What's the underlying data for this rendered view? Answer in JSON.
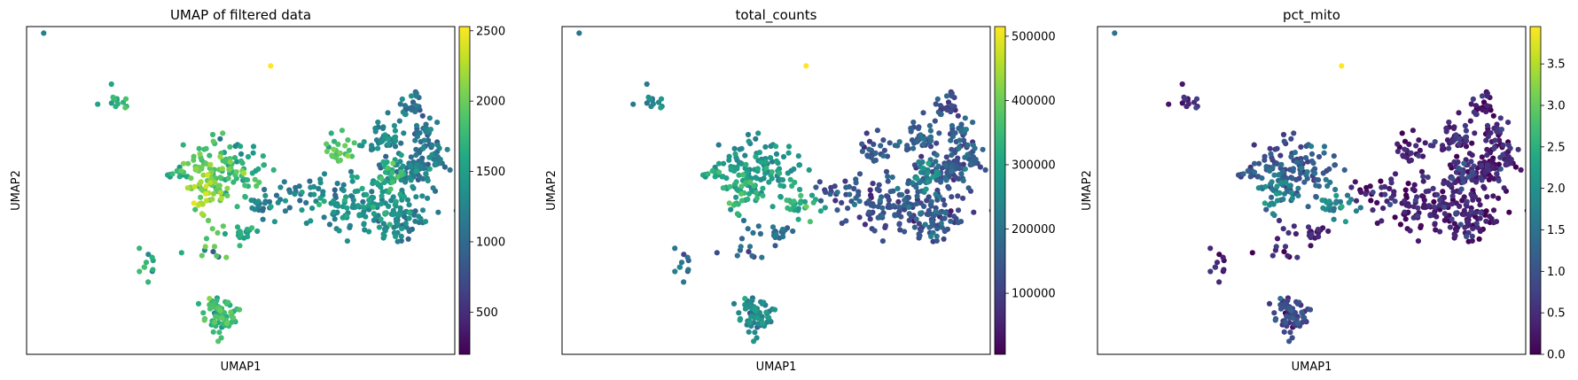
{
  "figure": {
    "panels": [
      {
        "title": "UMAP of filtered data",
        "xlabel": "UMAP1",
        "ylabel": "UMAP2",
        "colorbar": {
          "min": 200,
          "max": 2530,
          "ticks": [
            "500",
            "1000",
            "1500",
            "2000",
            "2500"
          ],
          "tick_values": [
            500,
            1000,
            1500,
            2000,
            2500
          ]
        }
      },
      {
        "title": "total_counts",
        "xlabel": "UMAP1",
        "ylabel": "UMAP2",
        "colorbar": {
          "min": 5000,
          "max": 515000,
          "ticks": [
            "100000",
            "200000",
            "300000",
            "400000",
            "500000"
          ],
          "tick_values": [
            100000,
            200000,
            300000,
            400000,
            500000
          ]
        }
      },
      {
        "title": "pct_mito",
        "xlabel": "UMAP1",
        "ylabel": "UMAP2",
        "colorbar": {
          "min": 0.0,
          "max": 3.95,
          "ticks": [
            "0.0",
            "0.5",
            "1.0",
            "1.5",
            "2.0",
            "2.5",
            "3.0",
            "3.5"
          ],
          "tick_values": [
            0,
            0.5,
            1.0,
            1.5,
            2.0,
            2.5,
            3.0,
            3.5
          ]
        }
      }
    ]
  },
  "chart_data": [
    {
      "type": "scatter",
      "title": "UMAP of filtered data",
      "xlabel": "UMAP1",
      "ylabel": "UMAP2",
      "colormap": "viridis",
      "color_range": [
        200,
        2530
      ],
      "grid": false,
      "clusters": [
        {
          "cx": 0.2,
          "cy": 0.22,
          "sx": 0.05,
          "sy": 0.06,
          "n": 14,
          "value": 1600
        },
        {
          "cx": 0.04,
          "cy": 0.02,
          "sx": 0.01,
          "sy": 0.01,
          "n": 1,
          "value": 1200
        },
        {
          "cx": 0.45,
          "cy": 0.64,
          "sx": 0.12,
          "sy": 0.07,
          "n": 14,
          "value": 1950
        },
        {
          "cx": 0.48,
          "cy": 0.37,
          "sx": 0.05,
          "sy": 0.04,
          "n": 8,
          "value": 1300
        },
        {
          "cx": 0.43,
          "cy": 0.42,
          "sx": 0.08,
          "sy": 0.1,
          "n": 55,
          "value": 1900
        },
        {
          "cx": 0.41,
          "cy": 0.51,
          "sx": 0.05,
          "sy": 0.07,
          "n": 40,
          "value": 2100
        },
        {
          "cx": 0.5,
          "cy": 0.45,
          "sx": 0.09,
          "sy": 0.08,
          "n": 45,
          "value": 1700
        },
        {
          "cx": 0.56,
          "cy": 0.54,
          "sx": 0.05,
          "sy": 0.04,
          "n": 25,
          "value": 1200
        },
        {
          "cx": 0.35,
          "cy": 0.45,
          "sx": 0.03,
          "sy": 0.02,
          "n": 12,
          "value": 1600
        },
        {
          "cx": 0.28,
          "cy": 0.72,
          "sx": 0.02,
          "sy": 0.06,
          "n": 10,
          "value": 1700
        },
        {
          "cx": 0.45,
          "cy": 0.88,
          "sx": 0.05,
          "sy": 0.06,
          "n": 70,
          "value": 1750
        },
        {
          "cx": 0.5,
          "cy": 0.63,
          "sx": 0.04,
          "sy": 0.02,
          "n": 15,
          "value": 1500
        },
        {
          "cx": 0.42,
          "cy": 0.7,
          "sx": 0.09,
          "sy": 0.06,
          "n": 4,
          "value": 1100
        },
        {
          "cx": 0.68,
          "cy": 0.5,
          "sx": 0.12,
          "sy": 0.06,
          "n": 30,
          "value": 1150
        },
        {
          "cx": 0.81,
          "cy": 0.55,
          "sx": 0.15,
          "sy": 0.09,
          "n": 160,
          "value": 1350
        },
        {
          "cx": 0.83,
          "cy": 0.35,
          "sx": 0.06,
          "sy": 0.06,
          "n": 45,
          "value": 1250
        },
        {
          "cx": 0.9,
          "cy": 0.44,
          "sx": 0.06,
          "sy": 0.06,
          "n": 60,
          "value": 1150
        },
        {
          "cx": 0.9,
          "cy": 0.24,
          "sx": 0.04,
          "sy": 0.05,
          "n": 25,
          "value": 1050
        },
        {
          "cx": 0.92,
          "cy": 0.33,
          "sx": 0.05,
          "sy": 0.08,
          "n": 30,
          "value": 1100
        },
        {
          "cx": 0.88,
          "cy": 0.6,
          "sx": 0.04,
          "sy": 0.06,
          "n": 25,
          "value": 1100
        },
        {
          "cx": 0.95,
          "cy": 0.4,
          "sx": 0.04,
          "sy": 0.05,
          "n": 25,
          "value": 1050
        },
        {
          "cx": 0.85,
          "cy": 0.45,
          "sx": 0.05,
          "sy": 0.07,
          "n": 35,
          "value": 1650
        },
        {
          "cx": 0.73,
          "cy": 0.38,
          "sx": 0.04,
          "sy": 0.06,
          "n": 25,
          "value": 1900
        },
        {
          "cx": 0.57,
          "cy": 0.12,
          "sx": 0.05,
          "sy": 0.08,
          "n": 1,
          "value": 2530
        }
      ]
    },
    {
      "type": "scatter",
      "title": "total_counts",
      "xlabel": "UMAP1",
      "ylabel": "UMAP2",
      "colormap": "viridis",
      "color_range": [
        5000,
        515000
      ],
      "grid": false,
      "clusters": [
        {
          "cx": 0.2,
          "cy": 0.22,
          "sx": 0.05,
          "sy": 0.06,
          "n": 14,
          "value": 220000
        },
        {
          "cx": 0.04,
          "cy": 0.02,
          "sx": 0.01,
          "sy": 0.01,
          "n": 1,
          "value": 200000
        },
        {
          "cx": 0.45,
          "cy": 0.64,
          "sx": 0.12,
          "sy": 0.07,
          "n": 14,
          "value": 190000
        },
        {
          "cx": 0.48,
          "cy": 0.37,
          "sx": 0.05,
          "sy": 0.04,
          "n": 8,
          "value": 250000
        },
        {
          "cx": 0.43,
          "cy": 0.42,
          "sx": 0.08,
          "sy": 0.1,
          "n": 55,
          "value": 260000
        },
        {
          "cx": 0.41,
          "cy": 0.51,
          "sx": 0.05,
          "sy": 0.07,
          "n": 40,
          "value": 310000
        },
        {
          "cx": 0.5,
          "cy": 0.45,
          "sx": 0.09,
          "sy": 0.08,
          "n": 45,
          "value": 280000
        },
        {
          "cx": 0.56,
          "cy": 0.54,
          "sx": 0.05,
          "sy": 0.04,
          "n": 25,
          "value": 320000
        },
        {
          "cx": 0.35,
          "cy": 0.45,
          "sx": 0.03,
          "sy": 0.02,
          "n": 12,
          "value": 300000
        },
        {
          "cx": 0.28,
          "cy": 0.72,
          "sx": 0.02,
          "sy": 0.06,
          "n": 10,
          "value": 200000
        },
        {
          "cx": 0.45,
          "cy": 0.88,
          "sx": 0.05,
          "sy": 0.06,
          "n": 70,
          "value": 240000
        },
        {
          "cx": 0.5,
          "cy": 0.63,
          "sx": 0.04,
          "sy": 0.02,
          "n": 15,
          "value": 180000
        },
        {
          "cx": 0.42,
          "cy": 0.7,
          "sx": 0.09,
          "sy": 0.06,
          "n": 4,
          "value": 150000
        },
        {
          "cx": 0.68,
          "cy": 0.5,
          "sx": 0.12,
          "sy": 0.06,
          "n": 30,
          "value": 120000
        },
        {
          "cx": 0.81,
          "cy": 0.55,
          "sx": 0.15,
          "sy": 0.09,
          "n": 160,
          "value": 130000
        },
        {
          "cx": 0.83,
          "cy": 0.35,
          "sx": 0.06,
          "sy": 0.06,
          "n": 45,
          "value": 150000
        },
        {
          "cx": 0.9,
          "cy": 0.44,
          "sx": 0.06,
          "sy": 0.06,
          "n": 60,
          "value": 140000
        },
        {
          "cx": 0.9,
          "cy": 0.24,
          "sx": 0.04,
          "sy": 0.05,
          "n": 25,
          "value": 110000
        },
        {
          "cx": 0.92,
          "cy": 0.33,
          "sx": 0.05,
          "sy": 0.08,
          "n": 30,
          "value": 160000
        },
        {
          "cx": 0.88,
          "cy": 0.6,
          "sx": 0.04,
          "sy": 0.06,
          "n": 25,
          "value": 150000
        },
        {
          "cx": 0.95,
          "cy": 0.4,
          "sx": 0.04,
          "sy": 0.05,
          "n": 25,
          "value": 130000
        },
        {
          "cx": 0.85,
          "cy": 0.45,
          "sx": 0.05,
          "sy": 0.07,
          "n": 35,
          "value": 230000
        },
        {
          "cx": 0.73,
          "cy": 0.38,
          "sx": 0.04,
          "sy": 0.06,
          "n": 25,
          "value": 140000
        },
        {
          "cx": 0.57,
          "cy": 0.12,
          "sx": 0.05,
          "sy": 0.08,
          "n": 1,
          "value": 515000
        }
      ]
    },
    {
      "type": "scatter",
      "title": "pct_mito",
      "xlabel": "UMAP1",
      "ylabel": "UMAP2",
      "colormap": "viridis",
      "color_range": [
        0.0,
        3.95
      ],
      "grid": false,
      "clusters": [
        {
          "cx": 0.2,
          "cy": 0.22,
          "sx": 0.05,
          "sy": 0.06,
          "n": 14,
          "value": 0.3
        },
        {
          "cx": 0.04,
          "cy": 0.02,
          "sx": 0.01,
          "sy": 0.01,
          "n": 1,
          "value": 1.5
        },
        {
          "cx": 0.45,
          "cy": 0.64,
          "sx": 0.12,
          "sy": 0.07,
          "n": 14,
          "value": 0.5
        },
        {
          "cx": 0.48,
          "cy": 0.37,
          "sx": 0.05,
          "sy": 0.04,
          "n": 8,
          "value": 1.2
        },
        {
          "cx": 0.43,
          "cy": 0.42,
          "sx": 0.08,
          "sy": 0.1,
          "n": 55,
          "value": 0.9
        },
        {
          "cx": 0.41,
          "cy": 0.51,
          "sx": 0.05,
          "sy": 0.07,
          "n": 40,
          "value": 1.6
        },
        {
          "cx": 0.5,
          "cy": 0.45,
          "sx": 0.09,
          "sy": 0.08,
          "n": 45,
          "value": 1.2
        },
        {
          "cx": 0.56,
          "cy": 0.54,
          "sx": 0.05,
          "sy": 0.04,
          "n": 25,
          "value": 1.8
        },
        {
          "cx": 0.35,
          "cy": 0.45,
          "sx": 0.03,
          "sy": 0.02,
          "n": 12,
          "value": 1.0
        },
        {
          "cx": 0.28,
          "cy": 0.72,
          "sx": 0.02,
          "sy": 0.06,
          "n": 10,
          "value": 0.4
        },
        {
          "cx": 0.45,
          "cy": 0.88,
          "sx": 0.05,
          "sy": 0.06,
          "n": 70,
          "value": 0.8
        },
        {
          "cx": 0.5,
          "cy": 0.63,
          "sx": 0.04,
          "sy": 0.02,
          "n": 15,
          "value": 0.3
        },
        {
          "cx": 0.42,
          "cy": 0.7,
          "sx": 0.09,
          "sy": 0.06,
          "n": 4,
          "value": 0.2
        },
        {
          "cx": 0.68,
          "cy": 0.5,
          "sx": 0.12,
          "sy": 0.06,
          "n": 30,
          "value": 0.2
        },
        {
          "cx": 0.81,
          "cy": 0.55,
          "sx": 0.15,
          "sy": 0.09,
          "n": 160,
          "value": 0.3
        },
        {
          "cx": 0.83,
          "cy": 0.35,
          "sx": 0.06,
          "sy": 0.06,
          "n": 45,
          "value": 0.4
        },
        {
          "cx": 0.9,
          "cy": 0.44,
          "sx": 0.06,
          "sy": 0.06,
          "n": 60,
          "value": 0.3
        },
        {
          "cx": 0.9,
          "cy": 0.24,
          "sx": 0.04,
          "sy": 0.05,
          "n": 25,
          "value": 0.2
        },
        {
          "cx": 0.92,
          "cy": 0.33,
          "sx": 0.05,
          "sy": 0.08,
          "n": 30,
          "value": 0.4
        },
        {
          "cx": 0.88,
          "cy": 0.6,
          "sx": 0.04,
          "sy": 0.06,
          "n": 25,
          "value": 0.3
        },
        {
          "cx": 0.95,
          "cy": 0.4,
          "sx": 0.04,
          "sy": 0.05,
          "n": 25,
          "value": 0.2
        },
        {
          "cx": 0.85,
          "cy": 0.45,
          "sx": 0.05,
          "sy": 0.07,
          "n": 35,
          "value": 0.6
        },
        {
          "cx": 0.73,
          "cy": 0.38,
          "sx": 0.04,
          "sy": 0.06,
          "n": 25,
          "value": 0.3
        },
        {
          "cx": 0.57,
          "cy": 0.12,
          "sx": 0.05,
          "sy": 0.08,
          "n": 1,
          "value": 3.95
        }
      ]
    }
  ]
}
